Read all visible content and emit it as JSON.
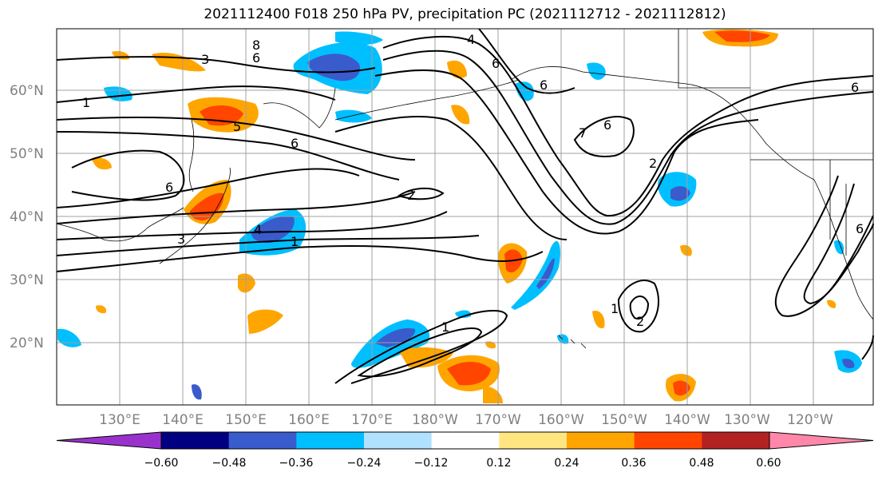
{
  "title": "2021112400 F018 250 hPa PV, precipitation PC (2021112712 - 2021112812)",
  "map": {
    "lat_labels": [
      "60°N",
      "50°N",
      "40°N",
      "30°N",
      "20°N"
    ],
    "lon_labels": [
      "130°E",
      "140°E",
      "150°E",
      "160°E",
      "170°E",
      "180°W",
      "170°W",
      "160°W",
      "150°W",
      "140°W",
      "130°W",
      "120°W"
    ],
    "contour_labels": [
      "8",
      "6",
      "3",
      "1",
      "4",
      "6",
      "5",
      "6",
      "6",
      "2",
      "4",
      "1",
      "3",
      "7",
      "6",
      "6",
      "2",
      "1",
      "2",
      "1",
      "6",
      "6"
    ]
  },
  "colorbar": {
    "ticks": [
      "−0.60",
      "−0.48",
      "−0.36",
      "−0.24",
      "−0.12",
      "0.12",
      "0.24",
      "0.36",
      "0.48",
      "0.60"
    ],
    "colors": [
      "#9932cc",
      "#000080",
      "#3a5bcc",
      "#00bfff",
      "#b0e2ff",
      "#ffffff",
      "#ffe680",
      "#ffa500",
      "#ff4500",
      "#b22222",
      "#ff88aa"
    ]
  }
}
